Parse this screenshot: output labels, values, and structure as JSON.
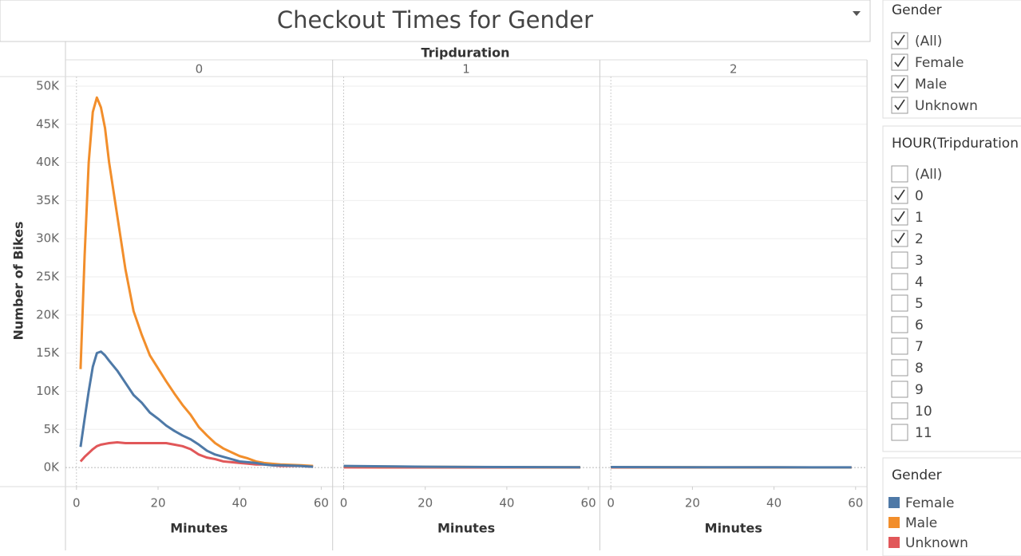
{
  "chart_data": {
    "type": "line",
    "title": "Checkout Times for Gender",
    "column_header": "Tripduration",
    "x_label": "Minutes",
    "y_label": "Number of Bikes",
    "xlim": [
      -2.7,
      62.8
    ],
    "xticks": [
      0,
      20,
      40,
      60
    ],
    "ylim": [
      -2500,
      51250
    ],
    "yticks": [
      {
        "value": 0,
        "label": "0K"
      },
      {
        "value": 5000,
        "label": "5K"
      },
      {
        "value": 10000,
        "label": "10K"
      },
      {
        "value": 15000,
        "label": "15K"
      },
      {
        "value": 20000,
        "label": "20K"
      },
      {
        "value": 25000,
        "label": "25K"
      },
      {
        "value": 30000,
        "label": "30K"
      },
      {
        "value": 35000,
        "label": "35K"
      },
      {
        "value": 40000,
        "label": "40K"
      },
      {
        "value": 45000,
        "label": "45K"
      },
      {
        "value": 50000,
        "label": "50K"
      }
    ],
    "grid": true,
    "panels": [
      {
        "label": "0",
        "x": [
          1,
          2,
          3,
          4,
          5,
          6,
          7,
          8,
          10,
          12,
          14,
          16,
          18,
          20,
          22,
          24,
          26,
          28,
          30,
          32,
          34,
          36,
          38,
          40,
          42,
          44,
          46,
          48,
          50,
          55,
          58
        ]
      },
      {
        "label": "1",
        "x": [
          0,
          10,
          20,
          30,
          40,
          50,
          58
        ]
      },
      {
        "label": "2",
        "x": [
          0,
          10,
          20,
          30,
          40,
          50,
          59
        ]
      }
    ],
    "legend_title": "Gender",
    "series": [
      {
        "name": "Female",
        "color": "#4e79a7",
        "values": [
          [
            2700,
            6400,
            10000,
            13200,
            15000,
            15200,
            14700,
            14000,
            12700,
            11100,
            9500,
            8500,
            7200,
            6400,
            5500,
            4800,
            4200,
            3700,
            3000,
            2200,
            1700,
            1400,
            1100,
            800,
            700,
            600,
            400,
            300,
            300,
            200,
            100
          ],
          [
            200,
            150,
            100,
            80,
            60,
            50,
            40
          ],
          [
            60,
            50,
            40,
            30,
            30,
            20,
            20
          ]
        ]
      },
      {
        "name": "Male",
        "color": "#f28e2b",
        "values": [
          [
            12900,
            27800,
            40000,
            46600,
            48500,
            47200,
            44500,
            40000,
            33000,
            26000,
            20500,
            17400,
            14700,
            13000,
            11300,
            9700,
            8200,
            6900,
            5300,
            4200,
            3200,
            2500,
            2000,
            1500,
            1200,
            800,
            600,
            500,
            400,
            300,
            200
          ],
          [
            180,
            130,
            90,
            70,
            50,
            40,
            30
          ],
          [
            50,
            40,
            30,
            25,
            20,
            15,
            15
          ]
        ]
      },
      {
        "name": "Unknown",
        "color": "#e15759",
        "values": [
          [
            800,
            1400,
            1900,
            2400,
            2800,
            3000,
            3100,
            3200,
            3300,
            3200,
            3200,
            3200,
            3200,
            3200,
            3200,
            3000,
            2800,
            2400,
            1700,
            1300,
            1100,
            800,
            700,
            600,
            500,
            400,
            400,
            300,
            200,
            200,
            100
          ],
          [
            20,
            15,
            10,
            10,
            5,
            5,
            5
          ],
          [
            5,
            5,
            5,
            5,
            5,
            5,
            5
          ]
        ]
      }
    ]
  },
  "filters": [
    {
      "title": "Gender",
      "items": [
        {
          "label": "(All)",
          "checked": true
        },
        {
          "label": "Female",
          "checked": true
        },
        {
          "label": "Male",
          "checked": true
        },
        {
          "label": "Unknown",
          "checked": true
        }
      ]
    },
    {
      "title": "HOUR(Tripduration",
      "items": [
        {
          "label": "(All)",
          "checked": false
        },
        {
          "label": "0",
          "checked": true
        },
        {
          "label": "1",
          "checked": true
        },
        {
          "label": "2",
          "checked": true
        },
        {
          "label": "3",
          "checked": false
        },
        {
          "label": "4",
          "checked": false
        },
        {
          "label": "5",
          "checked": false
        },
        {
          "label": "6",
          "checked": false
        },
        {
          "label": "7",
          "checked": false
        },
        {
          "label": "8",
          "checked": false
        },
        {
          "label": "9",
          "checked": false
        },
        {
          "label": "10",
          "checked": false
        },
        {
          "label": "11",
          "checked": false
        }
      ]
    }
  ]
}
